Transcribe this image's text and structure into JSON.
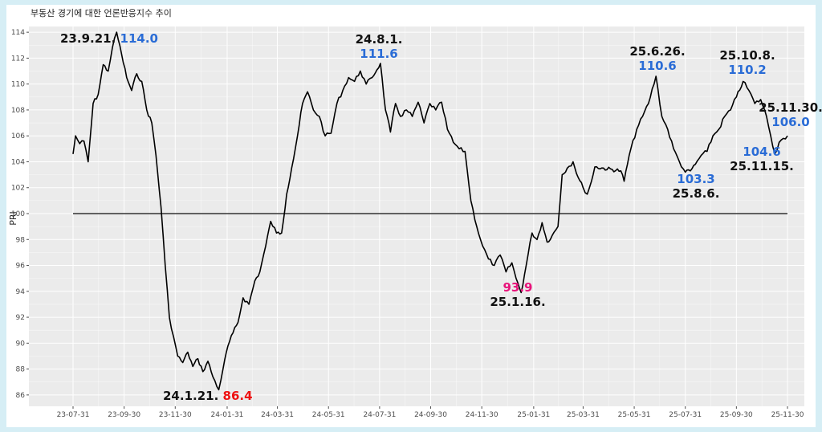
{
  "chart_data": {
    "type": "line",
    "title": "부동산 경기에 대한 언론반응지수 추이",
    "ylabel": "PRI",
    "xlabel": "",
    "ylim": [
      85,
      115
    ],
    "yticks": [
      86,
      88,
      90,
      92,
      94,
      96,
      98,
      100,
      102,
      104,
      106,
      108,
      110,
      112,
      114
    ],
    "xticks": [
      "23-07-31",
      "23-09-30",
      "23-11-30",
      "24-01-31",
      "24-03-31",
      "24-05-31",
      "24-07-31",
      "24-09-30",
      "24-11-30",
      "25-01-31",
      "25-03-31",
      "25-05-31",
      "25-07-31",
      "25-09-30",
      "25-11-30"
    ],
    "grid": true,
    "reference_line": 100,
    "series": [
      {
        "color": "#000000",
        "points": [
          [
            "2023-07-31",
            104.6
          ],
          [
            "2023-08-03",
            106.0
          ],
          [
            "2023-08-08",
            105.4
          ],
          [
            "2023-08-13",
            105.6
          ],
          [
            "2023-08-18",
            104.0
          ],
          [
            "2023-08-24",
            108.5
          ],
          [
            "2023-08-30",
            109.2
          ],
          [
            "2023-09-05",
            111.5
          ],
          [
            "2023-09-11",
            111.0
          ],
          [
            "2023-09-16",
            112.8
          ],
          [
            "2023-09-21",
            114.0
          ],
          [
            "2023-09-27",
            112.3
          ],
          [
            "2023-10-03",
            110.5
          ],
          [
            "2023-10-09",
            109.5
          ],
          [
            "2023-10-15",
            110.8
          ],
          [
            "2023-10-21",
            110.2
          ],
          [
            "2023-10-27",
            108.0
          ],
          [
            "2023-11-02",
            107.0
          ],
          [
            "2023-11-07",
            104.5
          ],
          [
            "2023-11-13",
            100.5
          ],
          [
            "2023-11-18",
            96.0
          ],
          [
            "2023-11-23",
            92.0
          ],
          [
            "2023-11-28",
            90.5
          ],
          [
            "2023-12-03",
            89.0
          ],
          [
            "2023-12-09",
            88.5
          ],
          [
            "2023-12-15",
            89.3
          ],
          [
            "2023-12-21",
            88.2
          ],
          [
            "2023-12-27",
            88.8
          ],
          [
            "2024-01-02",
            87.8
          ],
          [
            "2024-01-08",
            88.6
          ],
          [
            "2024-01-14",
            87.4
          ],
          [
            "2024-01-21",
            86.4
          ],
          [
            "2024-01-26",
            88.0
          ],
          [
            "2024-02-01",
            89.8
          ],
          [
            "2024-02-07",
            90.8
          ],
          [
            "2024-02-13",
            91.6
          ],
          [
            "2024-02-19",
            93.5
          ],
          [
            "2024-02-26",
            93.0
          ],
          [
            "2024-03-04",
            94.8
          ],
          [
            "2024-03-10",
            95.5
          ],
          [
            "2024-03-17",
            97.5
          ],
          [
            "2024-03-23",
            99.4
          ],
          [
            "2024-03-30",
            98.5
          ],
          [
            "2024-04-05",
            98.5
          ],
          [
            "2024-04-11",
            101.5
          ],
          [
            "2024-04-17",
            103.5
          ],
          [
            "2024-04-24",
            106.0
          ],
          [
            "2024-04-30",
            108.5
          ],
          [
            "2024-05-06",
            109.4
          ],
          [
            "2024-05-13",
            108.0
          ],
          [
            "2024-05-20",
            107.5
          ],
          [
            "2024-05-27",
            106.0
          ],
          [
            "2024-06-03",
            106.2
          ],
          [
            "2024-06-10",
            108.5
          ],
          [
            "2024-06-17",
            109.5
          ],
          [
            "2024-06-24",
            110.5
          ],
          [
            "2024-07-01",
            110.2
          ],
          [
            "2024-07-08",
            111.0
          ],
          [
            "2024-07-15",
            110.0
          ],
          [
            "2024-07-22",
            110.5
          ],
          [
            "2024-08-01",
            111.6
          ],
          [
            "2024-08-07",
            108.0
          ],
          [
            "2024-08-13",
            106.3
          ],
          [
            "2024-08-19",
            108.5
          ],
          [
            "2024-08-25",
            107.5
          ],
          [
            "2024-09-01",
            108.0
          ],
          [
            "2024-09-08",
            107.5
          ],
          [
            "2024-09-15",
            108.6
          ],
          [
            "2024-09-22",
            107.0
          ],
          [
            "2024-09-29",
            108.5
          ],
          [
            "2024-10-06",
            108.0
          ],
          [
            "2024-10-13",
            108.6
          ],
          [
            "2024-10-20",
            106.5
          ],
          [
            "2024-10-27",
            105.5
          ],
          [
            "2024-11-03",
            105.0
          ],
          [
            "2024-11-10",
            104.8
          ],
          [
            "2024-11-17",
            101.0
          ],
          [
            "2024-11-24",
            99.0
          ],
          [
            "2024-12-01",
            97.5
          ],
          [
            "2024-12-08",
            96.5
          ],
          [
            "2024-12-15",
            96.0
          ],
          [
            "2024-12-22",
            96.8
          ],
          [
            "2024-12-29",
            95.5
          ],
          [
            "2025-01-05",
            96.2
          ],
          [
            "2025-01-10",
            95.0
          ],
          [
            "2025-01-16",
            93.9
          ],
          [
            "2025-01-22",
            96.0
          ],
          [
            "2025-01-29",
            98.5
          ],
          [
            "2025-02-04",
            98.0
          ],
          [
            "2025-02-10",
            99.3
          ],
          [
            "2025-02-16",
            97.8
          ],
          [
            "2025-02-22",
            98.3
          ],
          [
            "2025-03-01",
            99.0
          ],
          [
            "2025-03-06",
            103.0
          ],
          [
            "2025-03-12",
            103.5
          ],
          [
            "2025-03-19",
            104.0
          ],
          [
            "2025-03-25",
            102.8
          ],
          [
            "2025-03-31",
            102.0
          ],
          [
            "2025-04-05",
            101.5
          ],
          [
            "2025-04-10",
            102.5
          ],
          [
            "2025-04-14",
            103.6
          ],
          [
            "2025-05-15",
            103.3
          ],
          [
            "2025-05-19",
            102.5
          ],
          [
            "2025-05-25",
            104.5
          ],
          [
            "2025-06-03",
            106.5
          ],
          [
            "2025-06-10",
            107.5
          ],
          [
            "2025-06-17",
            108.5
          ],
          [
            "2025-06-26",
            110.6
          ],
          [
            "2025-07-03",
            107.5
          ],
          [
            "2025-07-10",
            106.5
          ],
          [
            "2025-07-17",
            105.0
          ],
          [
            "2025-07-24",
            104.0
          ],
          [
            "2025-07-31",
            103.2
          ],
          [
            "2025-08-06",
            103.3
          ],
          [
            "2025-08-12",
            103.8
          ],
          [
            "2025-08-19",
            104.5
          ],
          [
            "2025-08-26",
            104.8
          ],
          [
            "2025-09-02",
            106.0
          ],
          [
            "2025-09-09",
            106.5
          ],
          [
            "2025-09-16",
            107.5
          ],
          [
            "2025-09-23",
            108.0
          ],
          [
            "2025-09-30",
            109.0
          ],
          [
            "2025-10-08",
            110.2
          ],
          [
            "2025-10-15",
            109.5
          ],
          [
            "2025-10-22",
            108.5
          ],
          [
            "2025-10-29",
            108.8
          ],
          [
            "2025-11-05",
            107.5
          ],
          [
            "2025-11-10",
            106.0
          ],
          [
            "2025-11-15",
            104.6
          ],
          [
            "2025-11-20",
            105.5
          ],
          [
            "2025-11-25",
            105.8
          ],
          [
            "2025-11-30",
            106.0
          ]
        ]
      }
    ],
    "annotations": [
      {
        "date": "23.9.21.",
        "value": "114.0",
        "value_color": "#2a6cd6",
        "layout": "inline"
      },
      {
        "date": "24.1.21.",
        "value": "86.4",
        "value_color": "#ee1111",
        "layout": "inline"
      },
      {
        "date": "24.8.1.",
        "value": "111.6",
        "value_color": "#2a6cd6",
        "layout": "above"
      },
      {
        "date": "25.1.16.",
        "value": "93.9",
        "value_color": "#e8137a",
        "layout": "below"
      },
      {
        "date": "25.6.26.",
        "value": "110.6",
        "value_color": "#2a6cd6",
        "layout": "above"
      },
      {
        "date": "25.8.6.",
        "value": "103.3",
        "value_color": "#2a6cd6",
        "layout": "below"
      },
      {
        "date": "25.10.8.",
        "value": "110.2",
        "value_color": "#2a6cd6",
        "layout": "above"
      },
      {
        "date": "25.11.15.",
        "value": "104.6",
        "value_color": "#2a6cd6",
        "layout": "below"
      },
      {
        "date": "25.11.30.",
        "value": "106.0",
        "value_color": "#2a6cd6",
        "layout": "above"
      }
    ],
    "colors": {
      "panel": "#ebebeb",
      "grid_major": "#ffffff",
      "line": "#000000",
      "reference": "#333333"
    }
  }
}
